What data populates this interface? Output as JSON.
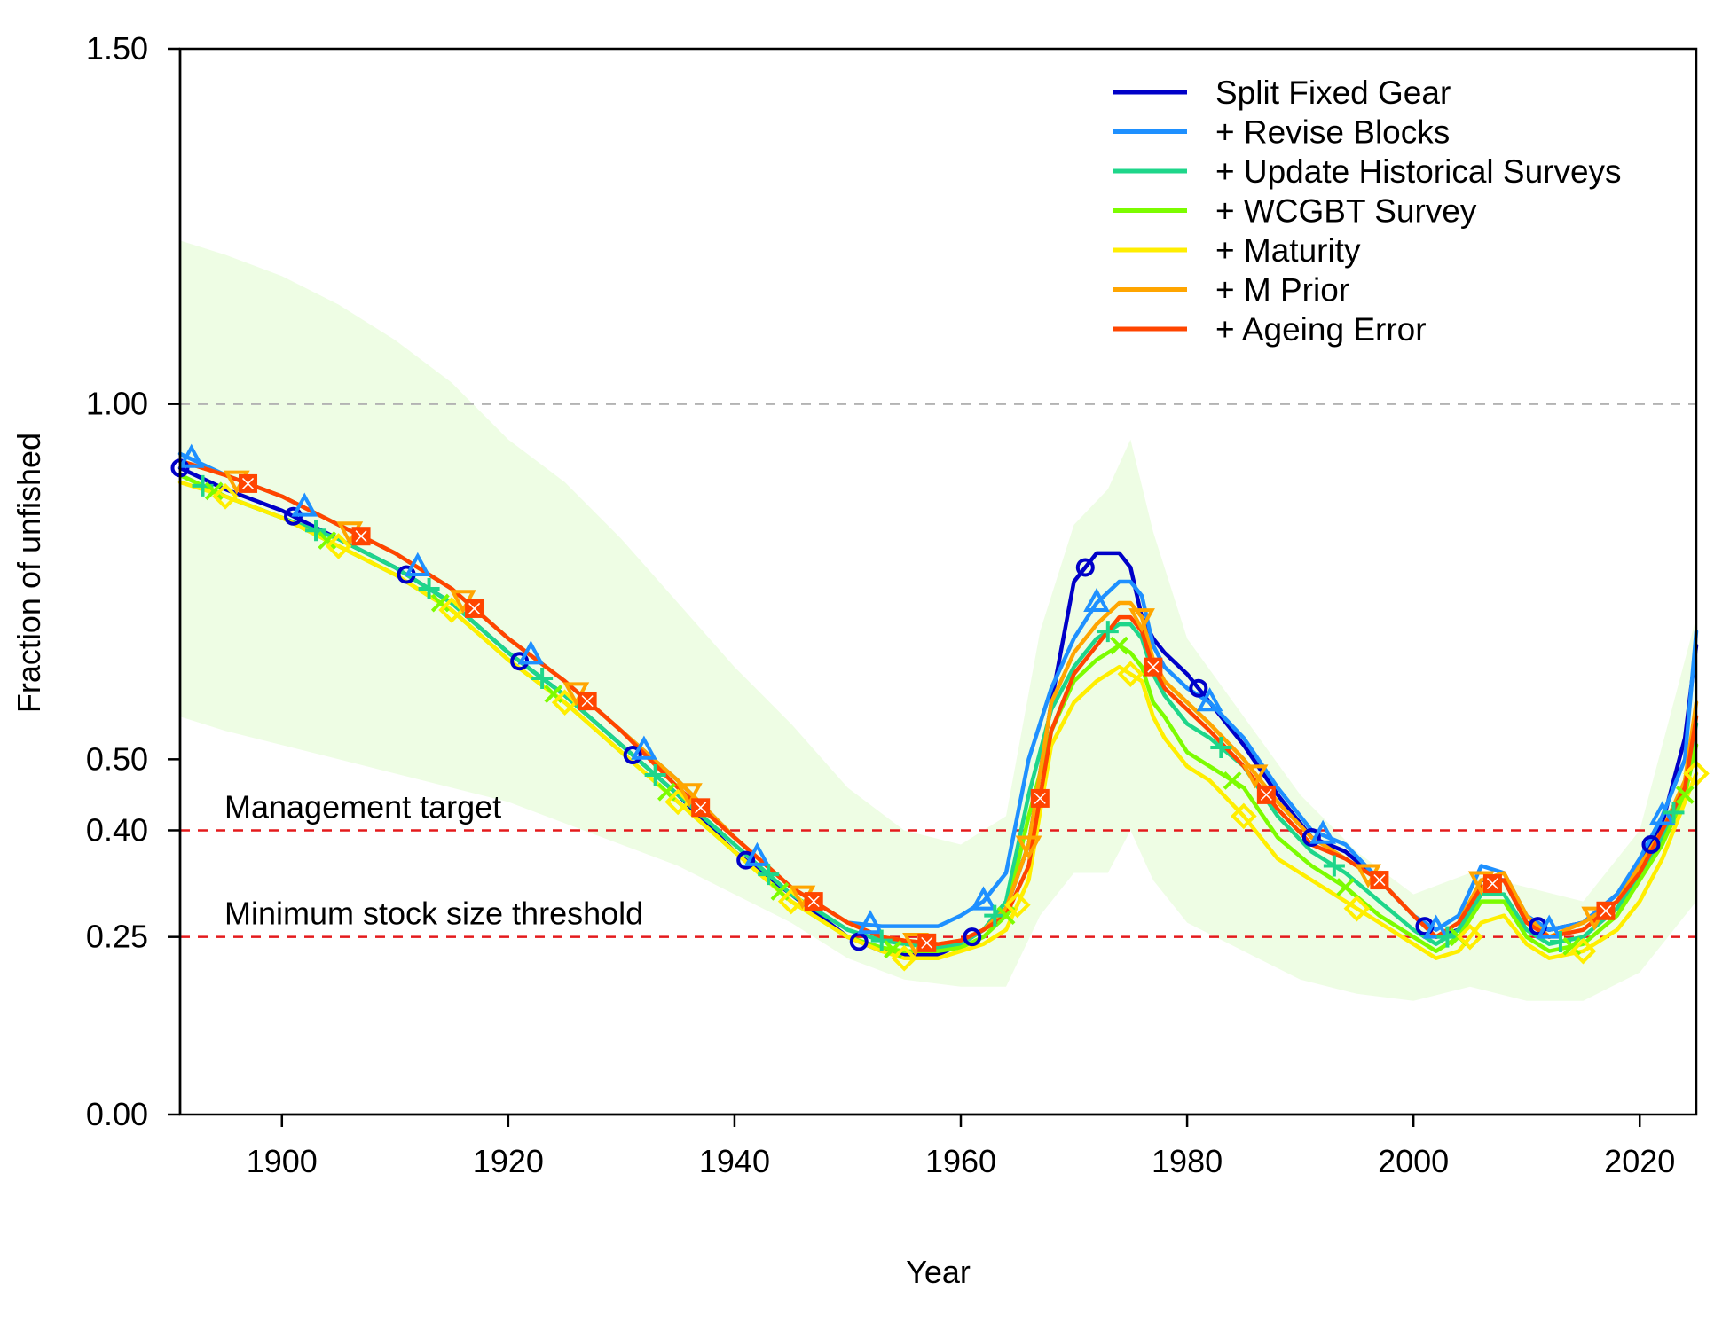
{
  "chart_data": {
    "type": "line",
    "xlabel": "Year",
    "ylabel": "Fraction of unfished",
    "xlim": [
      1891,
      2025
    ],
    "ylim": [
      0,
      1.5
    ],
    "x_ticks": [
      {
        "value": 1900,
        "label": "1900"
      },
      {
        "value": 1920,
        "label": "1920"
      },
      {
        "value": 1940,
        "label": "1940"
      },
      {
        "value": 1960,
        "label": "1960"
      },
      {
        "value": 1980,
        "label": "1980"
      },
      {
        "value": 2000,
        "label": "2000"
      },
      {
        "value": 2020,
        "label": "2020"
      }
    ],
    "y_ticks": [
      {
        "value": 0,
        "label": "0.00"
      },
      {
        "value": 0.25,
        "label": "0.25"
      },
      {
        "value": 0.4,
        "label": "0.40"
      },
      {
        "value": 0.5,
        "label": "0.50"
      },
      {
        "value": 1.0,
        "label": "1.00"
      },
      {
        "value": 1.5,
        "label": "1.50"
      }
    ],
    "reference_lines": [
      {
        "y": 1.0,
        "label": "",
        "color": "#b3b3b3"
      },
      {
        "y": 0.4,
        "label": "Management target",
        "color": "#e41a1c"
      },
      {
        "y": 0.25,
        "label": "Minimum stock size threshold",
        "color": "#e41a1c"
      }
    ],
    "interval_band": {
      "color": "#eefde4",
      "x": [
        1891,
        1895,
        1900,
        1905,
        1910,
        1915,
        1920,
        1925,
        1930,
        1935,
        1940,
        1945,
        1950,
        1955,
        1960,
        1964,
        1967,
        1970,
        1973,
        1975,
        1977,
        1980,
        1985,
        1990,
        1995,
        2000,
        2005,
        2010,
        2015,
        2020,
        2025
      ],
      "upper": [
        1.23,
        1.21,
        1.18,
        1.14,
        1.09,
        1.03,
        0.95,
        0.89,
        0.81,
        0.72,
        0.63,
        0.55,
        0.46,
        0.4,
        0.38,
        0.42,
        0.68,
        0.83,
        0.88,
        0.95,
        0.82,
        0.67,
        0.56,
        0.45,
        0.37,
        0.31,
        0.34,
        0.32,
        0.3,
        0.4,
        0.7
      ],
      "lower": [
        0.56,
        0.54,
        0.52,
        0.5,
        0.48,
        0.46,
        0.44,
        0.41,
        0.38,
        0.35,
        0.31,
        0.27,
        0.22,
        0.19,
        0.18,
        0.18,
        0.28,
        0.34,
        0.34,
        0.4,
        0.33,
        0.27,
        0.23,
        0.19,
        0.17,
        0.16,
        0.18,
        0.16,
        0.16,
        0.2,
        0.3
      ]
    },
    "legend_position": "top-right",
    "series": [
      {
        "name": "Split Fixed Gear",
        "color": "#0000c8",
        "marker": "circle",
        "marker_years": [
          1891,
          1901,
          1911,
          1921,
          1931,
          1941,
          1951,
          1961,
          1971,
          1981,
          1991,
          2001,
          2011,
          2021
        ],
        "x": [
          1891,
          1895,
          1900,
          1905,
          1910,
          1915,
          1920,
          1925,
          1930,
          1935,
          1940,
          1945,
          1950,
          1953,
          1955,
          1958,
          1960,
          1962,
          1964,
          1966,
          1968,
          1970,
          1972,
          1974,
          1975,
          1976,
          1977,
          1978,
          1980,
          1982,
          1985,
          1988,
          1991,
          1994,
          1997,
          2000,
          2002,
          2004,
          2006,
          2008,
          2010,
          2012,
          2015,
          2018,
          2020,
          2022,
          2024,
          2025
        ],
        "y": [
          0.91,
          0.88,
          0.85,
          0.81,
          0.77,
          0.72,
          0.65,
          0.59,
          0.52,
          0.45,
          0.37,
          0.31,
          0.25,
          0.23,
          0.225,
          0.225,
          0.24,
          0.26,
          0.29,
          0.38,
          0.58,
          0.75,
          0.79,
          0.79,
          0.77,
          0.7,
          0.67,
          0.65,
          0.62,
          0.58,
          0.52,
          0.45,
          0.39,
          0.37,
          0.33,
          0.28,
          0.25,
          0.26,
          0.33,
          0.33,
          0.27,
          0.26,
          0.27,
          0.31,
          0.35,
          0.41,
          0.53,
          0.66
        ]
      },
      {
        "name": "+ Revise Blocks",
        "color": "#1e90ff",
        "marker": "triangle",
        "marker_years": [
          1892,
          1902,
          1912,
          1922,
          1932,
          1942,
          1952,
          1962,
          1972,
          1982,
          1992,
          2002,
          2012,
          2022
        ],
        "x": [
          1891,
          1895,
          1900,
          1905,
          1910,
          1915,
          1920,
          1925,
          1930,
          1935,
          1940,
          1945,
          1950,
          1953,
          1955,
          1958,
          1960,
          1962,
          1964,
          1966,
          1968,
          1970,
          1972,
          1974,
          1975,
          1976,
          1977,
          1978,
          1980,
          1982,
          1985,
          1988,
          1991,
          1994,
          1997,
          2000,
          2002,
          2004,
          2006,
          2008,
          2010,
          2012,
          2015,
          2018,
          2020,
          2022,
          2024,
          2025
        ],
        "y": [
          0.93,
          0.9,
          0.87,
          0.83,
          0.79,
          0.74,
          0.67,
          0.61,
          0.54,
          0.47,
          0.39,
          0.32,
          0.27,
          0.265,
          0.265,
          0.265,
          0.28,
          0.3,
          0.34,
          0.5,
          0.6,
          0.67,
          0.72,
          0.75,
          0.75,
          0.73,
          0.66,
          0.63,
          0.6,
          0.58,
          0.53,
          0.46,
          0.4,
          0.38,
          0.33,
          0.28,
          0.26,
          0.28,
          0.35,
          0.34,
          0.28,
          0.26,
          0.27,
          0.31,
          0.36,
          0.42,
          0.5,
          0.68
        ]
      },
      {
        "name": "+ Update Historical Surveys",
        "color": "#1ed68a",
        "marker": "plus",
        "marker_years": [
          1893,
          1903,
          1913,
          1923,
          1933,
          1943,
          1953,
          1963,
          1973,
          1983,
          1993,
          2003,
          2013,
          2023
        ],
        "x": [
          1891,
          1895,
          1900,
          1905,
          1910,
          1915,
          1920,
          1925,
          1930,
          1935,
          1940,
          1945,
          1950,
          1953,
          1955,
          1958,
          1960,
          1962,
          1964,
          1966,
          1968,
          1970,
          1972,
          1974,
          1975,
          1976,
          1977,
          1978,
          1980,
          1982,
          1985,
          1988,
          1991,
          1994,
          1997,
          2000,
          2002,
          2004,
          2006,
          2008,
          2010,
          2012,
          2015,
          2018,
          2020,
          2022,
          2024,
          2025
        ],
        "y": [
          0.9,
          0.87,
          0.84,
          0.81,
          0.77,
          0.72,
          0.65,
          0.59,
          0.52,
          0.45,
          0.38,
          0.31,
          0.26,
          0.245,
          0.24,
          0.235,
          0.24,
          0.26,
          0.3,
          0.45,
          0.57,
          0.63,
          0.67,
          0.69,
          0.69,
          0.67,
          0.62,
          0.59,
          0.55,
          0.53,
          0.49,
          0.42,
          0.37,
          0.34,
          0.3,
          0.26,
          0.24,
          0.26,
          0.31,
          0.31,
          0.26,
          0.24,
          0.25,
          0.29,
          0.34,
          0.39,
          0.46,
          0.55
        ]
      },
      {
        "name": "+ WCGBT Survey",
        "color": "#7cfc00",
        "marker": "x",
        "marker_years": [
          1894,
          1904,
          1914,
          1924,
          1934,
          1944,
          1954,
          1964,
          1974,
          1984,
          1994,
          2004,
          2014,
          2024
        ],
        "x": [
          1891,
          1895,
          1900,
          1905,
          1910,
          1915,
          1920,
          1925,
          1930,
          1935,
          1940,
          1945,
          1950,
          1953,
          1955,
          1958,
          1960,
          1962,
          1964,
          1966,
          1968,
          1970,
          1972,
          1974,
          1975,
          1976,
          1977,
          1978,
          1980,
          1982,
          1985,
          1988,
          1991,
          1994,
          1997,
          2000,
          2002,
          2004,
          2006,
          2008,
          2010,
          2012,
          2015,
          2018,
          2020,
          2022,
          2024,
          2025
        ],
        "y": [
          0.9,
          0.87,
          0.84,
          0.8,
          0.76,
          0.71,
          0.64,
          0.58,
          0.51,
          0.44,
          0.37,
          0.3,
          0.25,
          0.235,
          0.23,
          0.23,
          0.235,
          0.25,
          0.28,
          0.42,
          0.54,
          0.61,
          0.64,
          0.66,
          0.65,
          0.63,
          0.58,
          0.56,
          0.51,
          0.49,
          0.46,
          0.39,
          0.35,
          0.32,
          0.28,
          0.25,
          0.23,
          0.25,
          0.3,
          0.3,
          0.25,
          0.23,
          0.24,
          0.28,
          0.33,
          0.38,
          0.45,
          0.52
        ]
      },
      {
        "name": "+ Maturity",
        "color": "#ffee00",
        "marker": "diamond",
        "marker_years": [
          1895,
          1905,
          1915,
          1925,
          1935,
          1945,
          1955,
          1965,
          1975,
          1985,
          1995,
          2005,
          2015,
          2025
        ],
        "x": [
          1891,
          1895,
          1900,
          1905,
          1910,
          1915,
          1920,
          1925,
          1930,
          1935,
          1940,
          1945,
          1950,
          1953,
          1955,
          1958,
          1960,
          1962,
          1964,
          1966,
          1968,
          1970,
          1972,
          1974,
          1975,
          1976,
          1977,
          1978,
          1980,
          1982,
          1985,
          1988,
          1991,
          1994,
          1997,
          2000,
          2002,
          2004,
          2006,
          2008,
          2010,
          2012,
          2015,
          2018,
          2020,
          2022,
          2024,
          2025
        ],
        "y": [
          0.89,
          0.87,
          0.84,
          0.8,
          0.76,
          0.71,
          0.64,
          0.58,
          0.51,
          0.44,
          0.37,
          0.3,
          0.25,
          0.23,
          0.22,
          0.22,
          0.23,
          0.24,
          0.26,
          0.33,
          0.52,
          0.58,
          0.61,
          0.63,
          0.62,
          0.61,
          0.56,
          0.53,
          0.49,
          0.47,
          0.42,
          0.36,
          0.33,
          0.3,
          0.27,
          0.24,
          0.22,
          0.23,
          0.27,
          0.28,
          0.24,
          0.22,
          0.23,
          0.26,
          0.3,
          0.36,
          0.44,
          0.48
        ]
      },
      {
        "name": "+ M Prior",
        "color": "#ffa500",
        "marker": "triangle-down",
        "marker_years": [
          1896,
          1906,
          1916,
          1926,
          1936,
          1946,
          1956,
          1966,
          1976,
          1986,
          1996,
          2006,
          2016
        ],
        "x": [
          1891,
          1895,
          1900,
          1905,
          1910,
          1915,
          1920,
          1925,
          1930,
          1935,
          1940,
          1945,
          1950,
          1953,
          1955,
          1958,
          1960,
          1962,
          1964,
          1966,
          1968,
          1970,
          1972,
          1974,
          1975,
          1976,
          1977,
          1978,
          1980,
          1982,
          1985,
          1988,
          1991,
          1994,
          1997,
          2000,
          2002,
          2004,
          2006,
          2008,
          2010,
          2012,
          2015,
          2018,
          2020,
          2022,
          2024,
          2025
        ],
        "y": [
          0.92,
          0.9,
          0.87,
          0.83,
          0.79,
          0.74,
          0.67,
          0.61,
          0.54,
          0.47,
          0.39,
          0.32,
          0.27,
          0.25,
          0.245,
          0.24,
          0.245,
          0.26,
          0.29,
          0.38,
          0.58,
          0.65,
          0.69,
          0.72,
          0.72,
          0.7,
          0.64,
          0.61,
          0.58,
          0.55,
          0.5,
          0.44,
          0.39,
          0.36,
          0.33,
          0.28,
          0.25,
          0.27,
          0.33,
          0.34,
          0.28,
          0.25,
          0.27,
          0.3,
          0.35,
          0.4,
          0.47,
          0.58
        ]
      },
      {
        "name": "+ Ageing Error",
        "color": "#ff4500",
        "marker": "square-x",
        "marker_years": [
          1897,
          1907,
          1917,
          1927,
          1937,
          1947,
          1957,
          1967,
          1977,
          1987,
          1997,
          2007,
          2017
        ],
        "x": [
          1891,
          1895,
          1900,
          1905,
          1910,
          1915,
          1920,
          1925,
          1930,
          1935,
          1940,
          1945,
          1950,
          1953,
          1955,
          1958,
          1960,
          1962,
          1964,
          1966,
          1968,
          1970,
          1972,
          1974,
          1975,
          1976,
          1977,
          1978,
          1980,
          1982,
          1985,
          1988,
          1991,
          1994,
          1997,
          2000,
          2002,
          2004,
          2006,
          2008,
          2010,
          2012,
          2015,
          2018,
          2020,
          2022,
          2024,
          2025
        ],
        "y": [
          0.92,
          0.9,
          0.87,
          0.83,
          0.79,
          0.74,
          0.67,
          0.61,
          0.54,
          0.46,
          0.39,
          0.32,
          0.27,
          0.25,
          0.245,
          0.24,
          0.245,
          0.26,
          0.28,
          0.35,
          0.54,
          0.62,
          0.66,
          0.7,
          0.7,
          0.68,
          0.63,
          0.6,
          0.57,
          0.54,
          0.49,
          0.43,
          0.38,
          0.36,
          0.33,
          0.28,
          0.25,
          0.27,
          0.32,
          0.33,
          0.27,
          0.25,
          0.26,
          0.3,
          0.34,
          0.4,
          0.46,
          0.56
        ]
      }
    ]
  }
}
